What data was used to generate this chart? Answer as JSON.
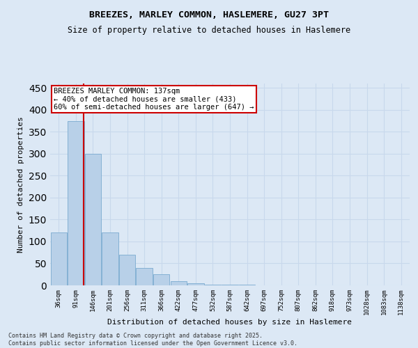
{
  "title": "BREEZES, MARLEY COMMON, HASLEMERE, GU27 3PT",
  "subtitle": "Size of property relative to detached houses in Haslemere",
  "xlabel": "Distribution of detached houses by size in Haslemere",
  "ylabel": "Number of detached properties",
  "categories": [
    "36sqm",
    "91sqm",
    "146sqm",
    "201sqm",
    "256sqm",
    "311sqm",
    "366sqm",
    "422sqm",
    "477sqm",
    "532sqm",
    "587sqm",
    "642sqm",
    "697sqm",
    "752sqm",
    "807sqm",
    "862sqm",
    "918sqm",
    "973sqm",
    "1028sqm",
    "1083sqm",
    "1138sqm"
  ],
  "values": [
    120,
    375,
    300,
    120,
    70,
    40,
    25,
    10,
    5,
    2,
    1,
    1,
    0,
    0,
    0,
    0,
    0,
    0,
    0,
    0,
    0
  ],
  "bar_color": "#b8d0e8",
  "bar_edge_color": "#7aaad0",
  "red_line_x": 1.45,
  "annotation_title": "BREEZES MARLEY COMMON: 137sqm",
  "annotation_line1": "← 40% of detached houses are smaller (433)",
  "annotation_line2": "60% of semi-detached houses are larger (647) →",
  "annotation_box_facecolor": "#ffffff",
  "annotation_box_edgecolor": "#cc0000",
  "red_line_color": "#cc0000",
  "grid_color": "#c8d8ec",
  "background_color": "#dce8f5",
  "ylim": [
    0,
    460
  ],
  "yticks": [
    0,
    50,
    100,
    150,
    200,
    250,
    300,
    350,
    400,
    450
  ],
  "footer_line1": "Contains HM Land Registry data © Crown copyright and database right 2025.",
  "footer_line2": "Contains public sector information licensed under the Open Government Licence v3.0."
}
